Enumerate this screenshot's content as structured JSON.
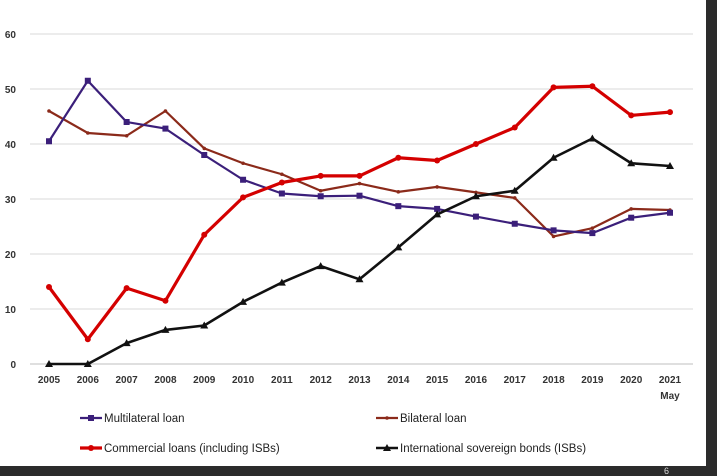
{
  "chart_data": {
    "type": "line",
    "title": "",
    "xlabel": "",
    "ylabel": "",
    "categories": [
      "2005",
      "2006",
      "2007",
      "2008",
      "2009",
      "2010",
      "2011",
      "2012",
      "2013",
      "2014",
      "2015",
      "2016",
      "2017",
      "2018",
      "2019",
      "2020",
      "2021"
    ],
    "category_sublabels": {
      "2021": "May"
    },
    "yticks": [
      0,
      10,
      20,
      30,
      40,
      50,
      60
    ],
    "ylim": [
      0,
      60
    ],
    "grid": "horizontal",
    "legend_placement": "bottom",
    "series": [
      {
        "name": "Multilateral loan",
        "color": "#3b1f7a",
        "marker": "square",
        "values": [
          40.5,
          51.5,
          44,
          42.8,
          38,
          33.5,
          31,
          30.5,
          30.6,
          28.7,
          28.2,
          26.8,
          25.5,
          24.3,
          23.8,
          26.6,
          27.5
        ]
      },
      {
        "name": "Bilateral loan",
        "color": "#8b2a1a",
        "marker": "dot",
        "values": [
          46,
          42,
          41.5,
          46,
          39.2,
          36.5,
          34.5,
          31.5,
          32.8,
          31.3,
          32.2,
          31.2,
          30.2,
          23.2,
          24.7,
          28.2,
          28
        ]
      },
      {
        "name": "Commercial loans (including ISBs)",
        "color": "#d40000",
        "marker": "circle",
        "values": [
          14,
          4.5,
          13.8,
          11.5,
          23.5,
          30.3,
          33,
          34.2,
          34.2,
          37.5,
          37,
          40,
          43,
          50.3,
          50.5,
          45.2,
          45.8
        ]
      },
      {
        "name": "International sovereign bonds (ISBs)",
        "color": "#111111",
        "marker": "triangle",
        "values": [
          0,
          0,
          3.8,
          6.2,
          7,
          11.3,
          14.8,
          17.8,
          15.4,
          21.2,
          27.2,
          30.5,
          31.5,
          37.5,
          41,
          36.5,
          36
        ]
      }
    ]
  },
  "page_number": "6"
}
